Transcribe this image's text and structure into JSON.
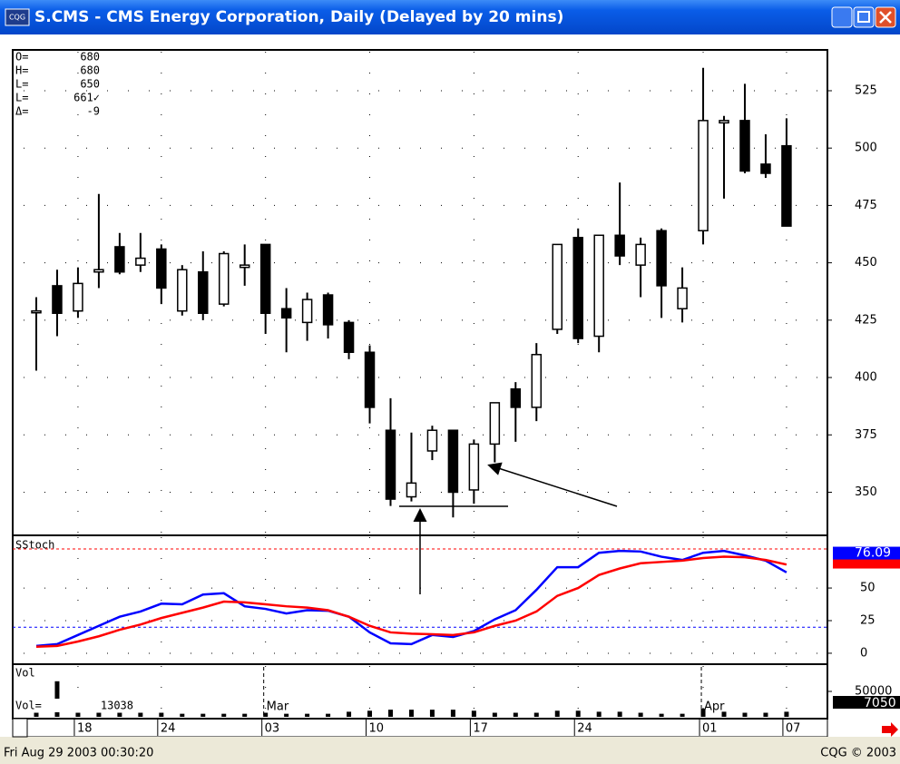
{
  "window": {
    "title": "S.CMS - CMS Energy Corporation, Daily (Delayed by 20 mins)",
    "icon": "CQG",
    "readout": [
      {
        "label": "O=",
        "value": "680"
      },
      {
        "label": "H=",
        "value": "680"
      },
      {
        "label": "L=",
        "value": "650"
      },
      {
        "label": "L=",
        "value": "661✓"
      },
      {
        "label": "Δ=",
        "value": "-9"
      }
    ],
    "status_left": "Fri Aug 29 2003 00:30:20",
    "status_right": "CQG © 2003"
  },
  "chart_data": [
    {
      "type": "candlestick",
      "categories": [
        null,
        null,
        "18",
        null,
        null,
        null,
        "24",
        null,
        null,
        null,
        null,
        "03",
        null,
        null,
        null,
        null,
        "10",
        null,
        null,
        null,
        null,
        "17",
        null,
        null,
        null,
        null,
        "24",
        null,
        null,
        null,
        null,
        null,
        "01",
        null,
        null,
        null,
        "07"
      ],
      "month_labels": [
        null,
        null,
        null,
        null,
        null,
        null,
        null,
        null,
        null,
        null,
        null,
        "Mar",
        null,
        null,
        null,
        null,
        null,
        null,
        null,
        null,
        null,
        null,
        null,
        null,
        null,
        null,
        null,
        null,
        null,
        null,
        null,
        null,
        "Apr",
        null,
        null,
        null,
        null
      ],
      "open": [
        429,
        440,
        429,
        446,
        457,
        449,
        456,
        429,
        446,
        432,
        448,
        458,
        430,
        424,
        436,
        424,
        411,
        377,
        348,
        368,
        377,
        351,
        371,
        395,
        387,
        421,
        461,
        418,
        462,
        449,
        464,
        430,
        464,
        511,
        512,
        493,
        501
      ],
      "high": [
        435,
        447,
        448,
        480,
        463,
        463,
        458,
        449,
        455,
        455,
        458,
        458,
        439,
        437,
        437,
        425,
        414,
        391,
        376,
        379,
        377,
        373,
        389,
        398,
        415,
        458,
        465,
        462,
        485,
        461,
        465,
        448,
        535,
        514,
        528,
        506,
        513
      ],
      "low": [
        403,
        418,
        426,
        439,
        445,
        446,
        432,
        427,
        425,
        431,
        440,
        419,
        411,
        416,
        417,
        408,
        380,
        344,
        346,
        364,
        339,
        345,
        363,
        372,
        381,
        419,
        415,
        411,
        449,
        435,
        426,
        424,
        458,
        478,
        489,
        487,
        466
      ],
      "close": [
        429,
        428,
        441,
        447,
        446,
        452,
        439,
        447,
        428,
        454,
        449,
        428,
        426,
        434,
        423,
        411,
        387,
        347,
        354,
        377,
        350,
        371,
        389,
        387,
        410,
        458,
        417,
        462,
        453,
        458,
        440,
        439,
        512,
        512,
        490,
        489,
        466
      ],
      "ylim": [
        332,
        542
      ],
      "yticks": [
        350,
        375,
        400,
        425,
        450,
        475,
        500,
        525
      ],
      "grid": true,
      "colors": {
        "up": "#ffffff",
        "down": "#000000",
        "outline": "#000000"
      }
    },
    {
      "type": "line",
      "title": "SStoch",
      "series": [
        {
          "color": "#0000ff",
          "values": [
            5.6,
            7,
            14,
            21,
            28,
            32,
            38,
            37.5,
            45,
            46,
            36,
            34,
            30.5,
            33,
            32.6,
            28,
            16,
            7.6,
            7,
            14,
            12.5,
            17,
            26,
            33,
            48.6,
            66,
            66,
            77,
            78.5,
            78,
            74,
            71.5,
            77,
            78.5,
            75,
            71,
            62
          ]
        },
        {
          "color": "#ff0000",
          "values": [
            5,
            5.6,
            9,
            13,
            18,
            22,
            27,
            31,
            35,
            39.6,
            39,
            37.5,
            36,
            35,
            33,
            28,
            21,
            16,
            15,
            14.6,
            14,
            16,
            21,
            25,
            32,
            44,
            50,
            60,
            65,
            69,
            70,
            71,
            73,
            74,
            73.6,
            71.5,
            68
          ]
        }
      ],
      "reference_lines": [
        {
          "value": 80,
          "color": "#ff0000"
        },
        {
          "value": 20,
          "color": "#0000ff"
        }
      ],
      "current_value": 76.09,
      "ylim": [
        -7,
        89
      ],
      "yticks": [
        0,
        25,
        50
      ]
    },
    {
      "type": "bar",
      "title": "Vol",
      "color": "#000000",
      "values": [
        8000,
        70000,
        8000,
        8000,
        8000,
        8000,
        8000,
        6000,
        6000,
        6000,
        6000,
        8000,
        6000,
        6000,
        6000,
        10000,
        12000,
        14000,
        14000,
        14000,
        14000,
        12000,
        8000,
        8000,
        8000,
        12000,
        12000,
        10000,
        10000,
        8000,
        6000,
        6000,
        16000,
        10000,
        8000,
        8000,
        10000
      ],
      "current_label": "Vol=",
      "current_value": 13038,
      "last_value": 7050,
      "ylim": [
        0,
        100000
      ],
      "yticks": [
        50000
      ]
    }
  ]
}
